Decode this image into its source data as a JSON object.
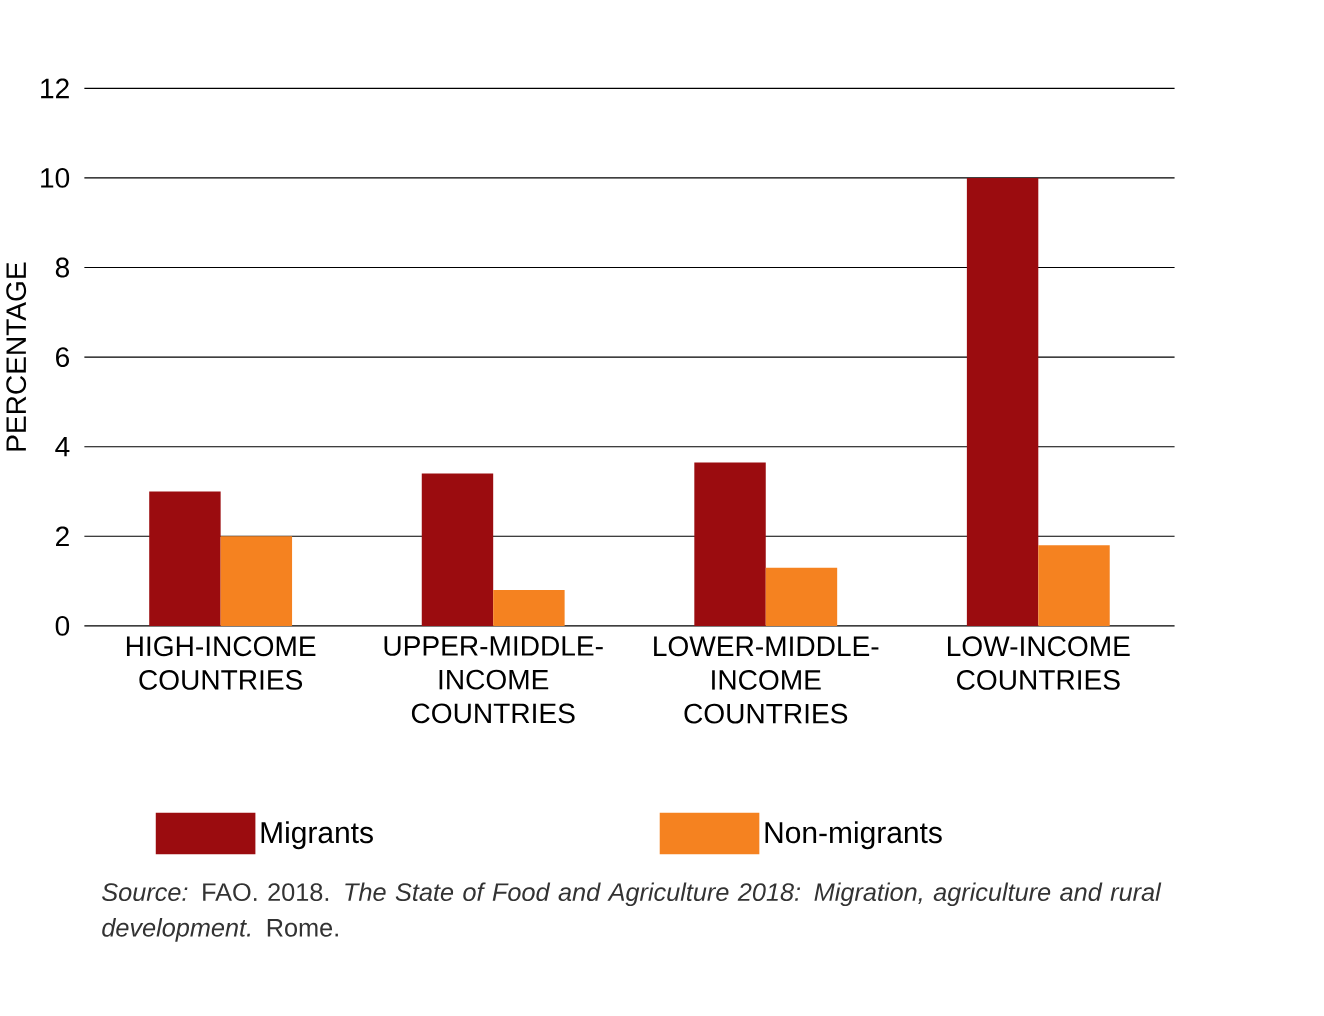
{
  "chart_data": {
    "type": "bar",
    "ylabel": "PERCENTAGE",
    "categories": [
      "HIGH-INCOME COUNTRIES",
      "UPPER-MIDDLE-INCOME COUNTRIES",
      "LOWER-MIDDLE-INCOME COUNTRIES",
      "LOW-INCOME COUNTRIES"
    ],
    "series": [
      {
        "name": "Migrants",
        "color": "#9b0c0f",
        "values": [
          3.0,
          3.4,
          3.65,
          10.0
        ]
      },
      {
        "name": "Non-migrants",
        "color": "#f58220",
        "values": [
          2.0,
          0.8,
          1.3,
          1.8
        ]
      }
    ],
    "ylim": [
      0,
      12
    ],
    "yticks": [
      0,
      2,
      4,
      6,
      8,
      10,
      12
    ],
    "grid": "y",
    "legend": "bottom",
    "annotations": [
      "*Source:* FAO. 2018. *The State of Food and Agriculture 2018: Migration, agriculture and rural development.* Rome."
    ]
  }
}
